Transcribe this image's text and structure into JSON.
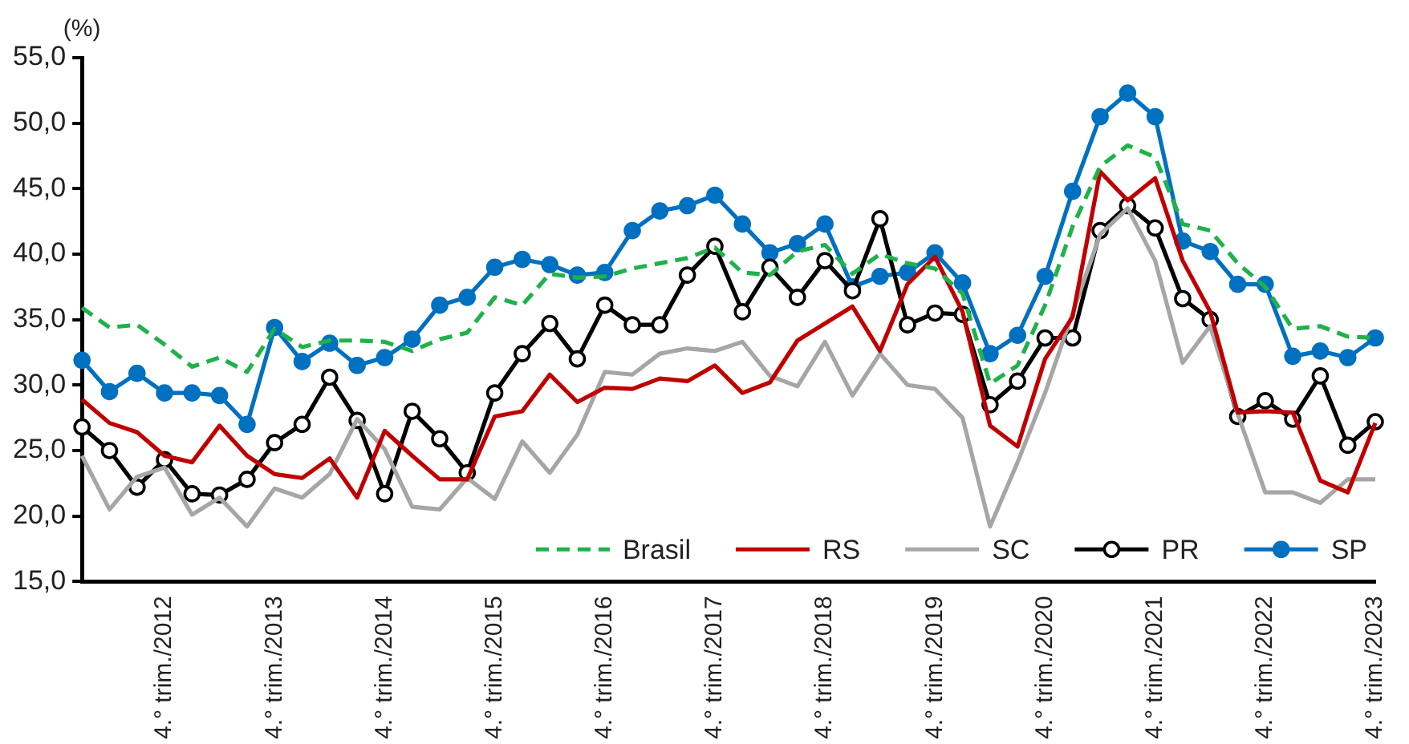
{
  "chart_data": {
    "type": "line",
    "ylabel": "(%)",
    "categories": [
      null,
      null,
      null,
      "4.° trim./2012",
      null,
      null,
      null,
      "4.° trim./2013",
      null,
      null,
      null,
      "4.° trim./2014",
      null,
      null,
      null,
      "4.° trim./2015",
      null,
      null,
      null,
      "4.° trim./2016",
      null,
      null,
      null,
      "4.° trim./2017",
      null,
      null,
      null,
      "4.° trim./2018",
      null,
      null,
      null,
      "4.° trim./2019",
      null,
      null,
      null,
      "4.° trim./2020",
      null,
      null,
      null,
      "4.° trim./2021",
      null,
      null,
      null,
      "4.° trim./2022",
      null,
      null,
      null,
      "4.° trim./2023"
    ],
    "series": [
      {
        "name": "Brasil",
        "color": "#1fb24a",
        "line_style": "dashed",
        "marker": "none",
        "values": [
          35.9,
          34.4,
          34.6,
          33.1,
          31.4,
          32.1,
          31.0,
          34.3,
          32.9,
          33.4,
          33.4,
          33.3,
          32.6,
          33.5,
          34.0,
          36.7,
          36.1,
          38.5,
          38.2,
          38.3,
          38.9,
          39.3,
          39.7,
          40.5,
          38.6,
          38.4,
          40.2,
          40.7,
          38.5,
          40.0,
          39.3,
          38.9,
          37.0,
          30.1,
          31.5,
          36.1,
          42.1,
          46.7,
          48.3,
          47.4,
          42.3,
          41.8,
          39.3,
          37.5,
          34.3,
          34.5,
          33.7,
          33.6
        ]
      },
      {
        "name": "RS",
        "color": "#c00000",
        "line_style": "solid",
        "marker": "none",
        "values": [
          28.9,
          27.1,
          26.4,
          24.6,
          24.1,
          26.9,
          24.6,
          23.2,
          22.9,
          24.4,
          21.4,
          26.5,
          24.6,
          22.8,
          22.8,
          27.6,
          28.0,
          30.8,
          28.7,
          29.8,
          29.7,
          30.5,
          30.3,
          31.5,
          29.4,
          30.2,
          33.4,
          34.7,
          36.0,
          32.6,
          37.7,
          39.8,
          35.6,
          26.9,
          25.3,
          32.0,
          35.2,
          46.3,
          44.1,
          45.8,
          39.5,
          35.6,
          27.9,
          28.0,
          27.9,
          22.7,
          21.8,
          27.1
        ]
      },
      {
        "name": "SC",
        "color": "#a6a6a6",
        "line_style": "solid",
        "marker": "none",
        "values": [
          24.6,
          20.5,
          23.0,
          23.7,
          20.1,
          21.4,
          19.2,
          22.1,
          21.4,
          23.2,
          27.4,
          25.1,
          20.7,
          20.5,
          22.9,
          21.3,
          25.7,
          23.3,
          26.2,
          31.0,
          30.8,
          32.4,
          32.8,
          32.6,
          33.3,
          30.7,
          29.9,
          33.3,
          29.2,
          32.4,
          30.0,
          29.7,
          27.5,
          19.2,
          24.1,
          29.4,
          35.5,
          41.5,
          43.5,
          39.5,
          31.7,
          34.5,
          27.8,
          21.8,
          21.8,
          21.0,
          22.8,
          22.8
        ]
      },
      {
        "name": "PR",
        "color": "#000000",
        "line_style": "solid",
        "marker": "circle",
        "values": [
          26.8,
          25.0,
          22.2,
          24.3,
          21.7,
          21.6,
          22.8,
          25.6,
          27.0,
          30.6,
          27.3,
          21.7,
          28.0,
          25.9,
          23.3,
          29.4,
          32.4,
          34.7,
          32.0,
          36.1,
          34.6,
          34.6,
          38.4,
          40.6,
          35.6,
          39.0,
          36.7,
          39.5,
          37.2,
          42.7,
          34.6,
          35.5,
          35.4,
          28.5,
          30.3,
          33.6,
          33.6,
          41.8,
          43.7,
          42.0,
          36.6,
          35.0,
          27.6,
          28.8,
          27.4,
          30.7,
          25.4,
          27.2
        ]
      },
      {
        "name": "SP",
        "color": "#0070c0",
        "line_style": "solid",
        "marker": "circle",
        "values": [
          31.9,
          29.5,
          30.9,
          29.4,
          29.4,
          29.2,
          27.0,
          34.4,
          31.8,
          33.2,
          31.5,
          32.1,
          33.5,
          36.1,
          36.7,
          39.0,
          39.6,
          39.2,
          38.4,
          38.6,
          41.8,
          43.3,
          43.7,
          44.5,
          42.3,
          40.1,
          40.8,
          42.3,
          37.5,
          38.3,
          38.6,
          40.1,
          37.8,
          32.4,
          33.8,
          38.3,
          44.8,
          50.5,
          52.3,
          50.5,
          41.0,
          40.2,
          37.7,
          37.7,
          32.2,
          32.6,
          32.1,
          33.6
        ]
      }
    ],
    "ylim": [
      15,
      55
    ],
    "yticks": [
      {
        "value": 15,
        "label": "15,0"
      },
      {
        "value": 20,
        "label": "20,0"
      },
      {
        "value": 25,
        "label": "25,0"
      },
      {
        "value": 30,
        "label": "30,0"
      },
      {
        "value": 35,
        "label": "35,0"
      },
      {
        "value": 40,
        "label": "40,0"
      },
      {
        "value": 45,
        "label": "45,0"
      },
      {
        "value": 50,
        "label": "50,0"
      },
      {
        "value": 55,
        "label": "55,0"
      }
    ],
    "grid": false,
    "legend": "bottom"
  }
}
